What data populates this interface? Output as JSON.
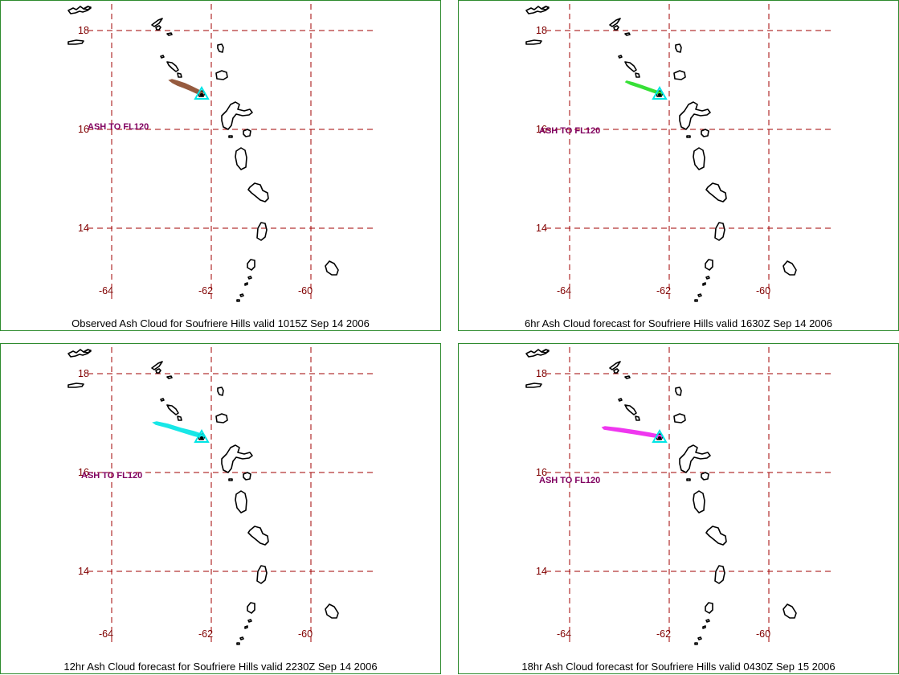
{
  "map": {
    "latitudes": [
      "18",
      "16",
      "14"
    ],
    "longitudes": [
      "-64",
      "-62",
      "-60"
    ],
    "grid_color": "#a00000",
    "label_color": "#800000",
    "ash_text_color": "#800060",
    "volcano_marker_color": "#00e5e5"
  },
  "panels": [
    {
      "caption": "Observed Ash Cloud for Soufriere  Hills valid 1015Z Sep 14 2006",
      "ash_label": "ASH TO FL120",
      "plume_color": "#8b4a2b"
    },
    {
      "caption": "6hr Ash Cloud forecast for Soufriere  Hills valid 1630Z Sep 14 2006",
      "ash_label": "ASH TO FL120",
      "plume_color": "#22dd22"
    },
    {
      "caption": "12hr Ash Cloud forecast for Soufriere  Hills valid 2230Z Sep 14 2006",
      "ash_label": "ASH TO FL120",
      "plume_color": "#00e5e5"
    },
    {
      "caption": "18hr Ash Cloud forecast for Soufriere  Hills valid 0430Z Sep 15 2006",
      "ash_label": "ASH TO FL120",
      "plume_color": "#ee22ee"
    }
  ]
}
